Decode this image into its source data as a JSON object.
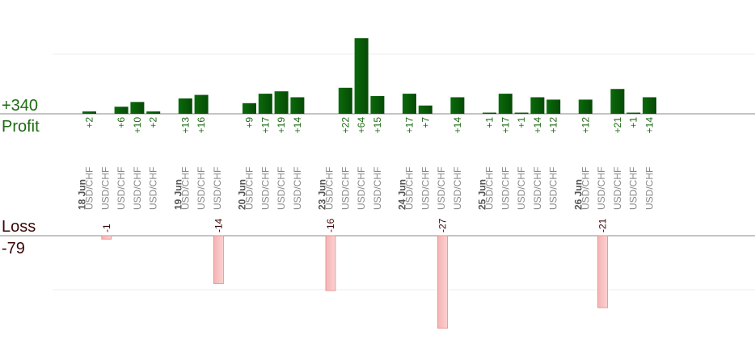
{
  "summary": {
    "profit_total": "+340",
    "profit_label": "Profit",
    "loss_label": "Loss",
    "loss_total": "-79"
  },
  "colors": {
    "profit_bar": "#0a6a0a",
    "profit_bar_dark": "#064a06",
    "profit_text": "#1e6b12",
    "loss_bar": "#f7b2b2",
    "loss_text": "#3a0707",
    "axis_line": "#888888",
    "grid": "#eeeeee",
    "category_text": "#888888",
    "date_text": "#555555"
  },
  "chart_data": {
    "type": "bar",
    "title": "",
    "xlabel": "",
    "ylabel": "",
    "dates": [
      {
        "label": "18 Jun",
        "trades": [
          {
            "symbol": "USD/CHF",
            "pl": 2
          },
          {
            "symbol": "USD/CHF",
            "pl": -1
          },
          {
            "symbol": "USD/CHF",
            "pl": 6
          },
          {
            "symbol": "USD/CHF",
            "pl": 10
          },
          {
            "symbol": "USD/CHF",
            "pl": 2
          }
        ]
      },
      {
        "label": "19 Jun",
        "trades": [
          {
            "symbol": "USD/CHF",
            "pl": 13
          },
          {
            "symbol": "USD/CHF",
            "pl": 16
          },
          {
            "symbol": "USD/CHF",
            "pl": -14
          }
        ]
      },
      {
        "label": "20 Jun",
        "trades": [
          {
            "symbol": "USD/CHF",
            "pl": 9
          },
          {
            "symbol": "USD/CHF",
            "pl": 17
          },
          {
            "symbol": "USD/CHF",
            "pl": 19
          },
          {
            "symbol": "USD/CHF",
            "pl": 14
          }
        ]
      },
      {
        "label": "23 Jun",
        "trades": [
          {
            "symbol": "USD/CHF",
            "pl": -16
          },
          {
            "symbol": "USD/CHF",
            "pl": 22
          },
          {
            "symbol": "USD/CHF",
            "pl": 64
          },
          {
            "symbol": "USD/CHF",
            "pl": 15
          }
        ]
      },
      {
        "label": "24 Jun",
        "trades": [
          {
            "symbol": "USD/CHF",
            "pl": 17
          },
          {
            "symbol": "USD/CHF",
            "pl": 7
          },
          {
            "symbol": "USD/CHF",
            "pl": -27
          },
          {
            "symbol": "USD/CHF",
            "pl": 14
          }
        ]
      },
      {
        "label": "25 Jun",
        "trades": [
          {
            "symbol": "USD/CHF",
            "pl": 1
          },
          {
            "symbol": "USD/CHF",
            "pl": 17
          },
          {
            "symbol": "USD/CHF",
            "pl": 1
          },
          {
            "symbol": "USD/CHF",
            "pl": 14
          },
          {
            "symbol": "USD/CHF",
            "pl": 12
          }
        ]
      },
      {
        "label": "26 Jun",
        "trades": [
          {
            "symbol": "USD/CHF",
            "pl": 12
          },
          {
            "symbol": "USD/CHF",
            "pl": -21
          },
          {
            "symbol": "USD/CHF",
            "pl": 21
          },
          {
            "symbol": "USD/CHF",
            "pl": 1
          },
          {
            "symbol": "USD/CHF",
            "pl": 14
          }
        ]
      }
    ]
  }
}
